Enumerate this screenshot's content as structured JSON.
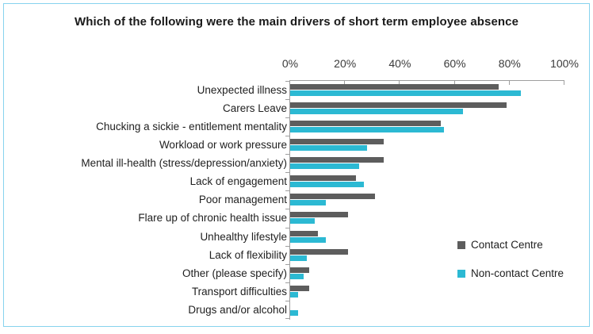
{
  "title": "Which of the following were the main drivers of short term employee absence",
  "colors": {
    "contact": "#5d5d5d",
    "non_contact": "#2cb9d3",
    "axis": "#9e9e9e",
    "border": "#87d3ee"
  },
  "legend": [
    {
      "label": "Contact Centre",
      "color_key": "contact"
    },
    {
      "label": "Non-contact Centre",
      "color_key": "non_contact"
    }
  ],
  "chart_data": {
    "type": "bar",
    "orientation": "horizontal",
    "title": "Which of the following were the main drivers of short term employee absence",
    "categories": [
      "Unexpected illness",
      "Carers Leave",
      "Chucking a sickie - entitlement mentality",
      "Workload or work pressure",
      "Mental ill-health (stress/depression/anxiety)",
      "Lack of engagement",
      "Poor management",
      "Flare up of chronic health issue",
      "Unhealthy lifestyle",
      "Lack of flexibility",
      "Other (please specify)",
      "Transport difficulties",
      "Drugs and/or alcohol"
    ],
    "series": [
      {
        "name": "Contact Centre",
        "values": [
          76,
          79,
          55,
          34,
          34,
          24,
          31,
          21,
          10,
          21,
          7,
          7,
          0
        ]
      },
      {
        "name": "Non-contact Centre",
        "values": [
          84,
          63,
          56,
          28,
          25,
          27,
          13,
          9,
          13,
          6,
          5,
          3,
          3
        ]
      }
    ],
    "x_ticks": [
      "0%",
      "20%",
      "40%",
      "60%",
      "80%",
      "100%"
    ],
    "xlim": [
      0,
      100
    ],
    "grid": false,
    "legend_position": "right-middle",
    "xlabel": "",
    "ylabel": ""
  }
}
